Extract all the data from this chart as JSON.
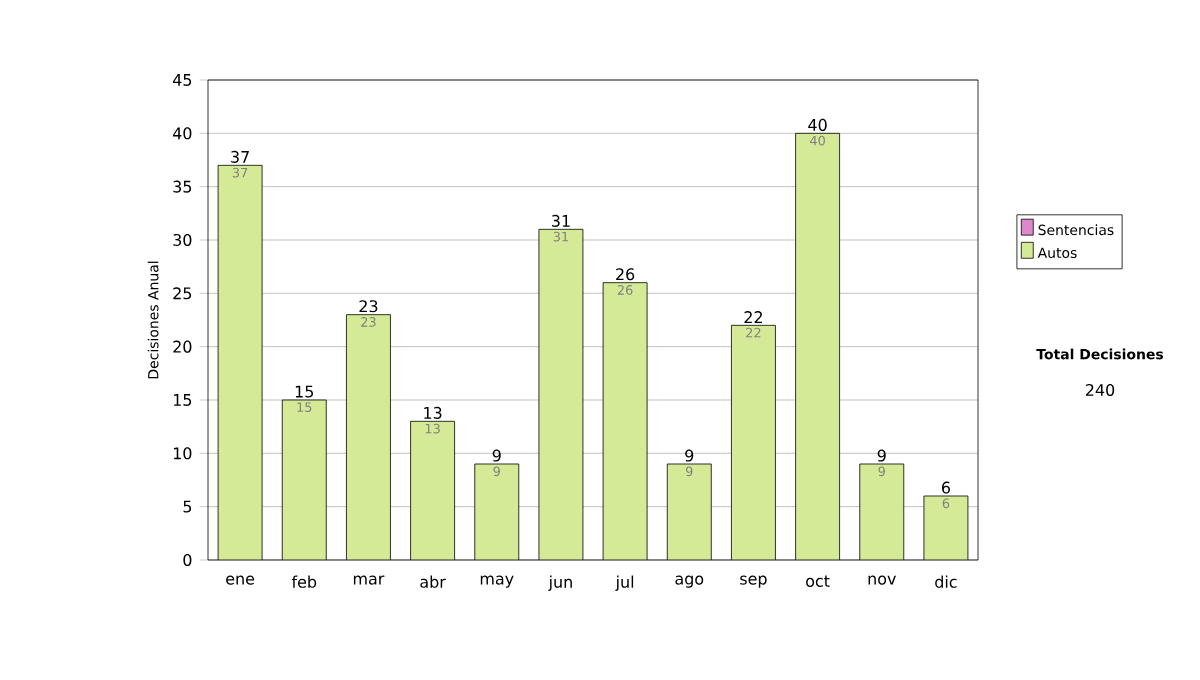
{
  "chart_data": {
    "type": "bar",
    "stacked": true,
    "ylabel": "Decisiones Anual",
    "categories": [
      "ene",
      "feb",
      "mar",
      "abr",
      "may",
      "jun",
      "jul",
      "ago",
      "sep",
      "oct",
      "nov",
      "dic"
    ],
    "series": [
      {
        "name": "Sentencias",
        "color": "#dd88cc",
        "values": [
          0,
          0,
          0,
          0,
          0,
          0,
          0,
          0,
          0,
          0,
          0,
          0
        ]
      },
      {
        "name": "Autos",
        "color": "#d4ea96",
        "values": [
          37,
          15,
          23,
          13,
          9,
          31,
          26,
          9,
          22,
          40,
          9,
          6
        ],
        "value_labels": [
          "37",
          "15",
          "23",
          "13",
          "9",
          "31",
          "26",
          "9",
          "22",
          "40",
          "9",
          "6"
        ]
      }
    ],
    "totals": [
      "37",
      "15",
      "23",
      "13",
      "9",
      "31",
      "26",
      "9",
      "22",
      "40",
      "9",
      "6"
    ],
    "ylim": [
      0,
      45
    ],
    "yticks": [
      0,
      5,
      10,
      15,
      20,
      25,
      30,
      35,
      40,
      45
    ],
    "grid": "y",
    "legend": "right",
    "annotations": [
      "Total Decisiones",
      "240"
    ]
  }
}
